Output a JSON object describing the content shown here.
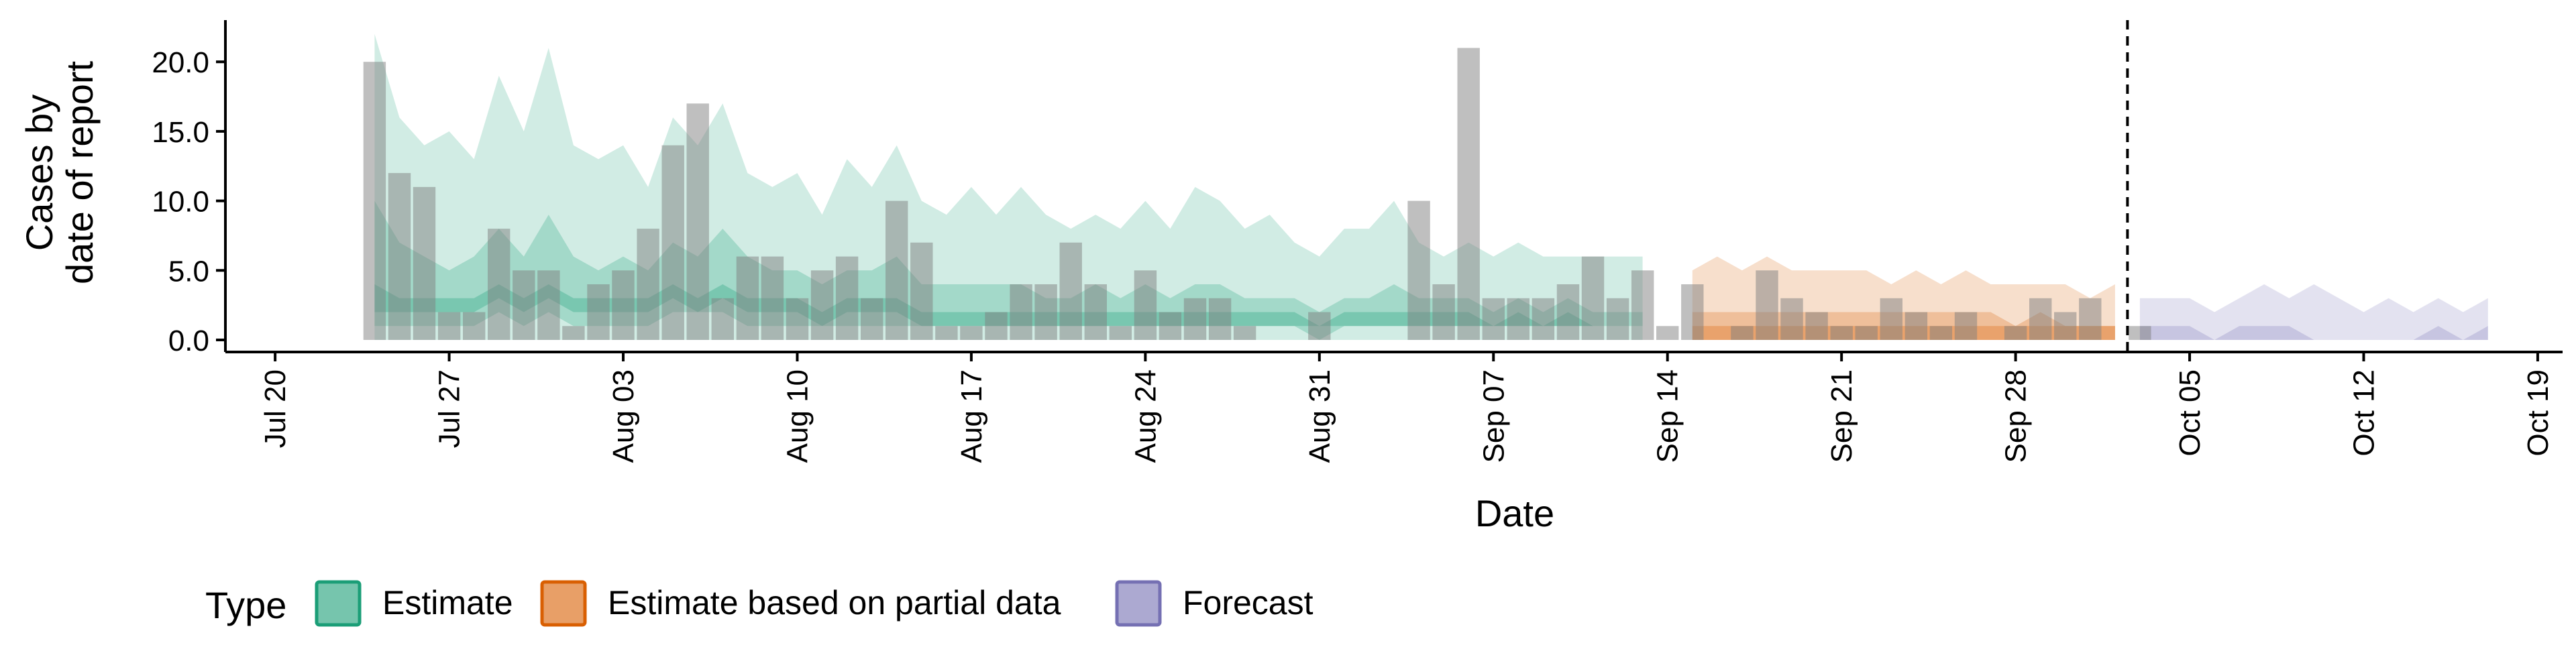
{
  "chart_data": {
    "type": "bar",
    "xlabel": "Date",
    "ylabel_lines": [
      "Cases by",
      "date of report"
    ],
    "ylim": [
      0,
      23
    ],
    "xlim": [
      "2020-07-18",
      "2020-10-20"
    ],
    "x_ticks": [
      {
        "date": "2020-07-20",
        "label": "Jul 20"
      },
      {
        "date": "2020-07-27",
        "label": "Jul 27"
      },
      {
        "date": "2020-08-03",
        "label": "Aug 03"
      },
      {
        "date": "2020-08-10",
        "label": "Aug 10"
      },
      {
        "date": "2020-08-17",
        "label": "Aug 17"
      },
      {
        "date": "2020-08-24",
        "label": "Aug 24"
      },
      {
        "date": "2020-08-31",
        "label": "Aug 31"
      },
      {
        "date": "2020-09-07",
        "label": "Sep 07"
      },
      {
        "date": "2020-09-14",
        "label": "Sep 14"
      },
      {
        "date": "2020-09-21",
        "label": "Sep 21"
      },
      {
        "date": "2020-09-28",
        "label": "Sep 28"
      },
      {
        "date": "2020-10-05",
        "label": "Oct 05"
      },
      {
        "date": "2020-10-12",
        "label": "Oct 12"
      },
      {
        "date": "2020-10-19",
        "label": "Oct 19"
      }
    ],
    "y_ticks": [
      {
        "value": 0,
        "label": "0.0"
      },
      {
        "value": 5,
        "label": "5.0"
      },
      {
        "value": 10,
        "label": "10.0"
      },
      {
        "value": 15,
        "label": "15.0"
      },
      {
        "value": 20,
        "label": "20.0"
      }
    ],
    "forecast_date": "2020-10-02",
    "reported_cases": {
      "start": "2020-07-24",
      "values": [
        20,
        12,
        11,
        2,
        2,
        8,
        5,
        5,
        1,
        4,
        5,
        8,
        14,
        17,
        3,
        6,
        6,
        3,
        5,
        6,
        3,
        10,
        7,
        1,
        1,
        2,
        4,
        4,
        7,
        4,
        1,
        5,
        2,
        3,
        3,
        1,
        0,
        0,
        2,
        0,
        0,
        0,
        10,
        4,
        21,
        3,
        3,
        3,
        4,
        6,
        3,
        5,
        1,
        4,
        0,
        1,
        5,
        3,
        2,
        1,
        1,
        3,
        2,
        1,
        2,
        0,
        1,
        3,
        2,
        3,
        0,
        1
      ]
    },
    "series": [
      {
        "name": "Estimate",
        "color": "#1B9E77",
        "start": "2020-07-24",
        "upper90": [
          22,
          16,
          14,
          15,
          13,
          19,
          15,
          21,
          14,
          13,
          14,
          11,
          16,
          14,
          17,
          12,
          11,
          12,
          9,
          13,
          11,
          14,
          10,
          9,
          11,
          9,
          11,
          9,
          8,
          9,
          8,
          10,
          8,
          11,
          10,
          8,
          9,
          7,
          6,
          8,
          8,
          10,
          7,
          6,
          7,
          6,
          7,
          6,
          6,
          6,
          6,
          6
        ],
        "lower90": [
          0,
          0,
          0,
          0,
          0,
          0,
          0,
          0,
          0,
          0,
          0,
          0,
          0,
          0,
          0,
          0,
          0,
          0,
          0,
          0,
          0,
          0,
          0,
          0,
          0,
          0,
          0,
          0,
          0,
          0,
          0,
          0,
          0,
          0,
          0,
          0,
          0,
          0,
          0,
          0,
          0,
          0,
          0,
          0,
          0,
          0,
          0,
          0,
          0,
          0,
          0,
          0
        ],
        "upper50": [
          10,
          7,
          6,
          5,
          6,
          8,
          6,
          9,
          6,
          5,
          6,
          5,
          7,
          6,
          8,
          6,
          5,
          5,
          4,
          5,
          5,
          6,
          4,
          4,
          4,
          4,
          4,
          3,
          3,
          4,
          3,
          4,
          3,
          4,
          4,
          3,
          3,
          3,
          2,
          3,
          3,
          4,
          3,
          3,
          3,
          2,
          3,
          2,
          3,
          2,
          2,
          2
        ],
        "lower50": [
          1,
          1,
          1,
          1,
          1,
          2,
          1,
          2,
          1,
          1,
          1,
          1,
          2,
          2,
          2,
          1,
          1,
          1,
          1,
          1,
          1,
          1,
          1,
          1,
          1,
          1,
          1,
          1,
          1,
          1,
          1,
          1,
          1,
          1,
          1,
          1,
          1,
          1,
          0,
          1,
          1,
          1,
          1,
          1,
          1,
          1,
          1,
          1,
          1,
          1,
          1,
          1
        ],
        "upper20": [
          4,
          3,
          3,
          3,
          3,
          4,
          3,
          4,
          3,
          3,
          3,
          3,
          4,
          3,
          4,
          3,
          3,
          3,
          2,
          3,
          3,
          3,
          2,
          2,
          2,
          2,
          2,
          2,
          2,
          2,
          2,
          2,
          2,
          2,
          2,
          2,
          2,
          2,
          1,
          2,
          2,
          2,
          2,
          2,
          2,
          1,
          2,
          1,
          2,
          1,
          1,
          1
        ],
        "lower20": [
          2,
          2,
          2,
          2,
          2,
          3,
          2,
          3,
          2,
          2,
          2,
          2,
          3,
          2,
          3,
          2,
          2,
          2,
          1,
          2,
          2,
          2,
          1,
          1,
          1,
          1,
          1,
          1,
          1,
          1,
          1,
          1,
          1,
          1,
          1,
          1,
          1,
          1,
          1,
          1,
          1,
          1,
          1,
          1,
          1,
          1,
          1,
          1,
          1,
          1,
          1,
          1
        ]
      },
      {
        "name": "Estimate based on partial data",
        "color": "#D95F02",
        "start": "2020-09-15",
        "upper90": [
          5,
          6,
          5,
          6,
          5,
          5,
          5,
          5,
          4,
          5,
          4,
          5,
          4,
          4,
          4,
          4,
          3,
          4
        ],
        "lower90": [
          0,
          0,
          0,
          0,
          0,
          0,
          0,
          0,
          0,
          0,
          0,
          0,
          0,
          0,
          0,
          0,
          0,
          0
        ],
        "upper50": [
          2,
          2,
          2,
          2,
          2,
          2,
          2,
          2,
          2,
          2,
          2,
          2,
          2,
          1,
          2,
          1,
          1,
          1
        ],
        "lower50": [
          0,
          0,
          0,
          0,
          0,
          0,
          0,
          0,
          0,
          0,
          0,
          0,
          0,
          0,
          0,
          0,
          0,
          0
        ],
        "upper20": [
          1,
          1,
          1,
          1,
          1,
          1,
          1,
          1,
          1,
          1,
          1,
          1,
          1,
          1,
          1,
          1,
          1,
          1
        ],
        "lower20": [
          0,
          0,
          0,
          0,
          0,
          0,
          0,
          0,
          0,
          0,
          0,
          0,
          0,
          0,
          0,
          0,
          0,
          0
        ]
      },
      {
        "name": "Forecast",
        "color": "#7570B3",
        "start": "2020-10-03",
        "upper90": [
          3,
          3,
          3,
          2,
          3,
          4,
          3,
          4,
          3,
          2,
          3,
          2,
          3,
          2,
          3
        ],
        "lower90": [
          0,
          0,
          0,
          0,
          0,
          0,
          0,
          0,
          0,
          0,
          0,
          0,
          0,
          0,
          0
        ],
        "upper50": [
          1,
          1,
          1,
          0,
          1,
          1,
          1,
          0,
          0,
          0,
          0,
          0,
          1,
          0,
          1
        ],
        "lower50": [
          0,
          0,
          0,
          0,
          0,
          0,
          0,
          0,
          0,
          0,
          0,
          0,
          0,
          0,
          0
        ]
      }
    ],
    "legend": {
      "title": "Type",
      "position": "bottom-left",
      "items": [
        {
          "label": "Estimate",
          "color": "#1B9E77"
        },
        {
          "label": "Estimate based on partial data",
          "color": "#D95F02"
        },
        {
          "label": "Forecast",
          "color": "#7570B3"
        }
      ]
    },
    "bar_color": "#808080",
    "grid": false
  }
}
